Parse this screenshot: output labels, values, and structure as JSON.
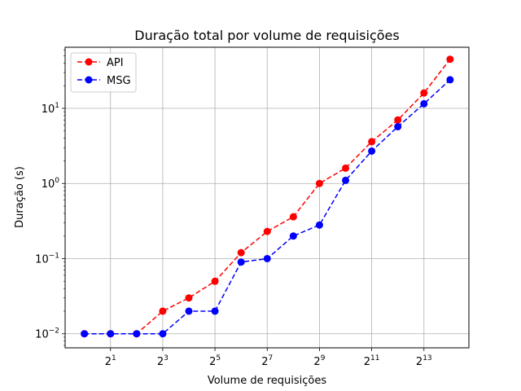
{
  "chart_data": {
    "type": "line",
    "title": "Duração total por volume de requisições",
    "xlabel": "Volume de requisições",
    "ylabel": "Duração (s)",
    "x_scale": "log2",
    "y_scale": "log10",
    "x": [
      1,
      2,
      4,
      8,
      16,
      32,
      64,
      128,
      256,
      512,
      1024,
      2048,
      4096,
      8192,
      16384
    ],
    "xlim": [
      0.6,
      27000
    ],
    "ylim": [
      0.0065,
      65
    ],
    "x_ticks": [
      {
        "base": "2",
        "exp": "1",
        "value": 2
      },
      {
        "base": "2",
        "exp": "3",
        "value": 8
      },
      {
        "base": "2",
        "exp": "5",
        "value": 32
      },
      {
        "base": "2",
        "exp": "7",
        "value": 128
      },
      {
        "base": "2",
        "exp": "9",
        "value": 512
      },
      {
        "base": "2",
        "exp": "11",
        "value": 2048
      },
      {
        "base": "2",
        "exp": "13",
        "value": 8192
      }
    ],
    "y_ticks": [
      {
        "base": "10",
        "exp": "−2",
        "value": 0.01
      },
      {
        "base": "10",
        "exp": "−1",
        "value": 0.1
      },
      {
        "base": "10",
        "exp": "0",
        "value": 1
      },
      {
        "base": "10",
        "exp": "1",
        "value": 10
      }
    ],
    "grid": true,
    "legend_position": "top-left",
    "series": [
      {
        "name": "API",
        "color": "#ff0000",
        "values": [
          0.01,
          0.01,
          0.01,
          0.02,
          0.03,
          0.05,
          0.12,
          0.23,
          0.36,
          1.0,
          1.6,
          3.6,
          7.0,
          16.0,
          45.0
        ]
      },
      {
        "name": "MSG",
        "color": "#0000ff",
        "values": [
          0.01,
          0.01,
          0.01,
          0.01,
          0.02,
          0.02,
          0.09,
          0.1,
          0.2,
          0.28,
          1.1,
          2.7,
          5.7,
          11.5,
          24.0
        ]
      }
    ]
  }
}
